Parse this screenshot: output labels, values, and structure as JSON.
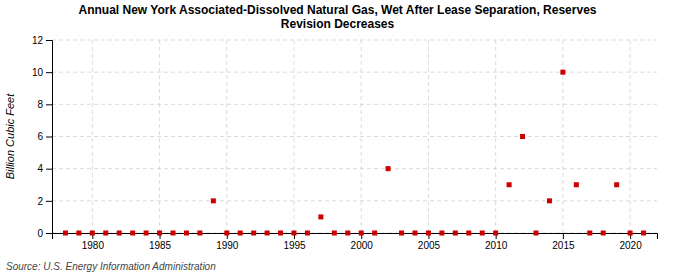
{
  "chart_data": {
    "type": "scatter",
    "title": "Annual New York Associated-Dissolved Natural Gas, Wet After Lease Separation, Reserves\nRevision Decreases",
    "ylabel": "Billion Cubic Feet",
    "source": "Source: U.S. Energy Information Administration",
    "x": [
      1978,
      1979,
      1980,
      1981,
      1982,
      1983,
      1984,
      1985,
      1986,
      1987,
      1988,
      1989,
      1990,
      1991,
      1992,
      1993,
      1994,
      1995,
      1996,
      1997,
      1998,
      1999,
      2000,
      2001,
      2002,
      2003,
      2004,
      2005,
      2006,
      2007,
      2008,
      2009,
      2010,
      2011,
      2012,
      2013,
      2014,
      2015,
      2016,
      2017,
      2018,
      2019,
      2020,
      2021
    ],
    "values": [
      0.0,
      0.0,
      0.0,
      0.0,
      0.0,
      0.0,
      0.0,
      0.0,
      0.0,
      0.0,
      0.0,
      2.0,
      0.0,
      0.0,
      0.0,
      0.0,
      0.0,
      0.0,
      0.0,
      1.0,
      0.0,
      0.0,
      0.0,
      0.0,
      4.0,
      0.0,
      0.0,
      0.0,
      0.0,
      0.0,
      0.0,
      0.0,
      0.0,
      3.0,
      6.0,
      0.0,
      2.0,
      10.0,
      3.0,
      0.0,
      0.0,
      3.0,
      0.0,
      0.0
    ],
    "color": "#cc0000",
    "marker": "square",
    "xlim": [
      1977,
      2022
    ],
    "ylim": [
      0,
      12
    ],
    "xticks": [
      1980,
      1985,
      1990,
      1995,
      2000,
      2005,
      2010,
      2015,
      2020
    ],
    "yticks": [
      0,
      2,
      4,
      6,
      8,
      10,
      12
    ],
    "grid": true
  }
}
